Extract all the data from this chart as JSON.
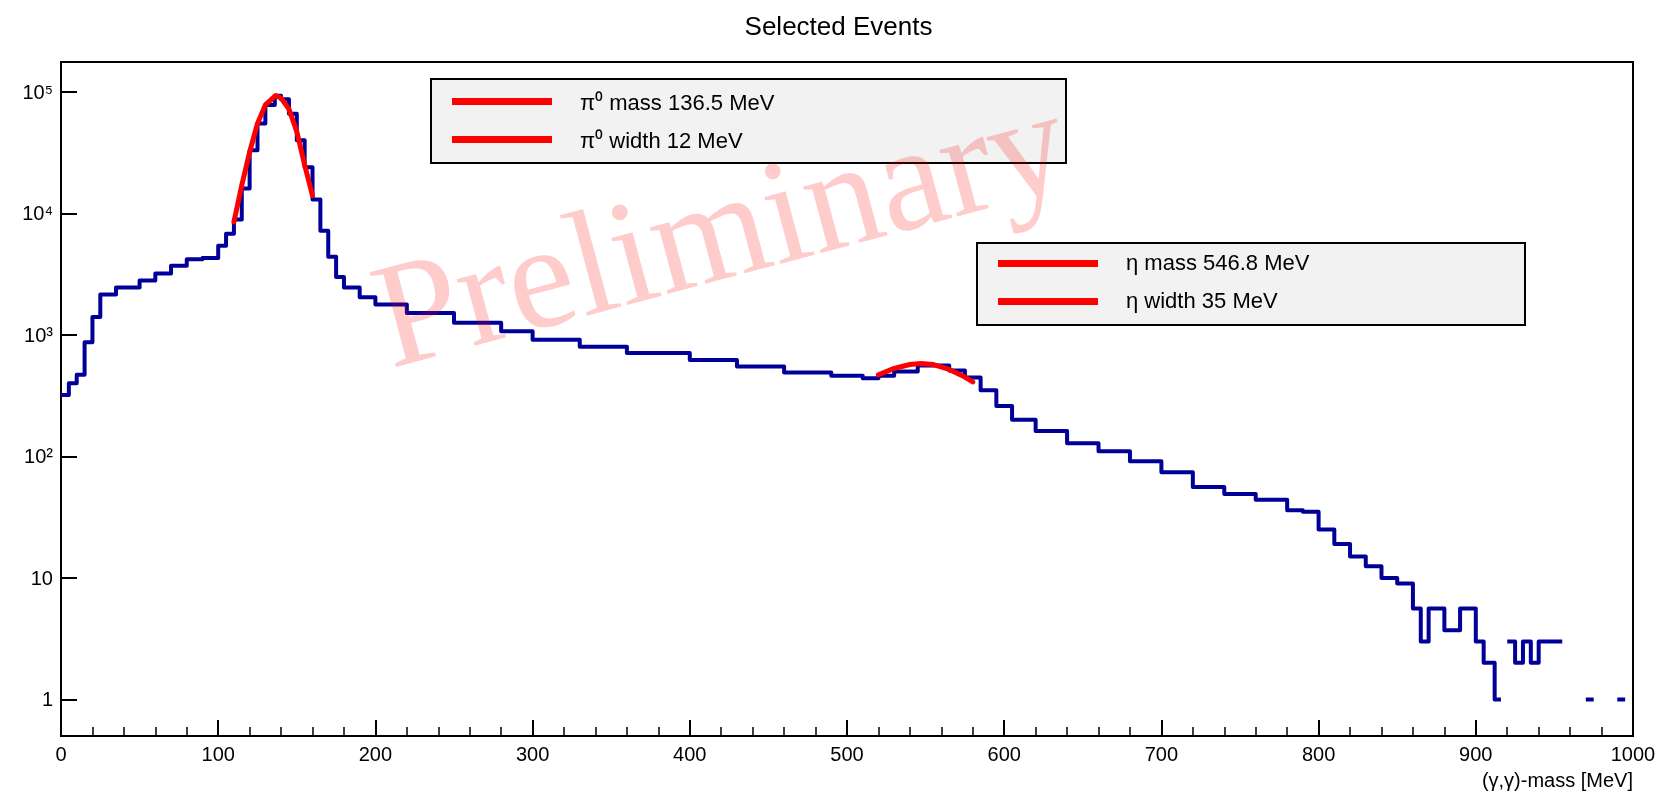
{
  "chart_data": {
    "type": "step",
    "title": "Selected Events",
    "xlabel": "(γ,γ)-mass [MeV]",
    "xlim": [
      0,
      1000
    ],
    "xticks": [
      0,
      100,
      200,
      300,
      400,
      500,
      600,
      700,
      800,
      900,
      1000
    ],
    "ylim": [
      0.5,
      176000
    ],
    "yticks": [
      1,
      10,
      {
        "value": 100,
        "label": "10²"
      },
      {
        "value": 1000,
        "label": "10³"
      },
      {
        "value": 10000,
        "label": "10⁴"
      },
      {
        "value": 100000,
        "label": "10⁵"
      }
    ],
    "log": "y",
    "grid": false,
    "series": [
      {
        "color": "#000099",
        "x": [
          0,
          5,
          10,
          15,
          20,
          25,
          35,
          50,
          60,
          70,
          80,
          90,
          100,
          105,
          110,
          115,
          120,
          125,
          130,
          136,
          140,
          145,
          150,
          155,
          160,
          165,
          170,
          175,
          180,
          190,
          200,
          220,
          250,
          280,
          300,
          330,
          360,
          400,
          430,
          460,
          490,
          510,
          520,
          530,
          545,
          555,
          565,
          575,
          585,
          595,
          605,
          620,
          640,
          660,
          680,
          700,
          720,
          740,
          760,
          780,
          790,
          800,
          810,
          820,
          830,
          840,
          850,
          860,
          865,
          870,
          880,
          890,
          900,
          905,
          912,
          916,
          920,
          925,
          930,
          935,
          940,
          955,
          970,
          975,
          990,
          995
        ],
        "values": [
          320,
          400,
          470,
          870,
          1400,
          2150,
          2450,
          2800,
          3200,
          3700,
          4200,
          4300,
          5400,
          6800,
          8900,
          16000,
          33000,
          55000,
          78000,
          93000,
          87000,
          66000,
          40000,
          24000,
          13000,
          7200,
          4400,
          3000,
          2450,
          2040,
          1780,
          1510,
          1260,
          1070,
          910,
          800,
          710,
          620,
          550,
          490,
          460,
          440,
          460,
          500,
          560,
          560,
          510,
          445,
          350,
          260,
          200,
          162,
          128,
          110,
          91,
          74,
          56,
          49,
          44,
          36,
          35,
          25,
          19,
          15,
          12.5,
          10,
          9,
          5.6,
          3,
          5.6,
          3.7,
          5.6,
          3,
          2,
          1,
          null,
          3,
          2,
          3,
          2,
          3,
          null,
          1,
          null,
          1,
          1
        ]
      },
      {
        "type": "line",
        "color": "#ff0000",
        "x": [
          110,
          115,
          120,
          125,
          130,
          136.5,
          140,
          145,
          150,
          155,
          160
        ],
        "values": [
          8500,
          17000,
          32000,
          55000,
          78000,
          93000,
          89000,
          72000,
          47000,
          25000,
          14000
        ]
      },
      {
        "type": "line",
        "color": "#ff0000",
        "x": [
          520,
          530,
          540,
          547,
          555,
          565,
          575,
          580
        ],
        "values": [
          470,
          530,
          570,
          580,
          570,
          520,
          450,
          410
        ]
      }
    ],
    "annotations": [
      "π⁰ mass 136.5 MeV",
      "π⁰ width 12 MeV",
      "η mass 546.8 MeV",
      "η width 35 MeV",
      "Preliminary"
    ]
  }
}
